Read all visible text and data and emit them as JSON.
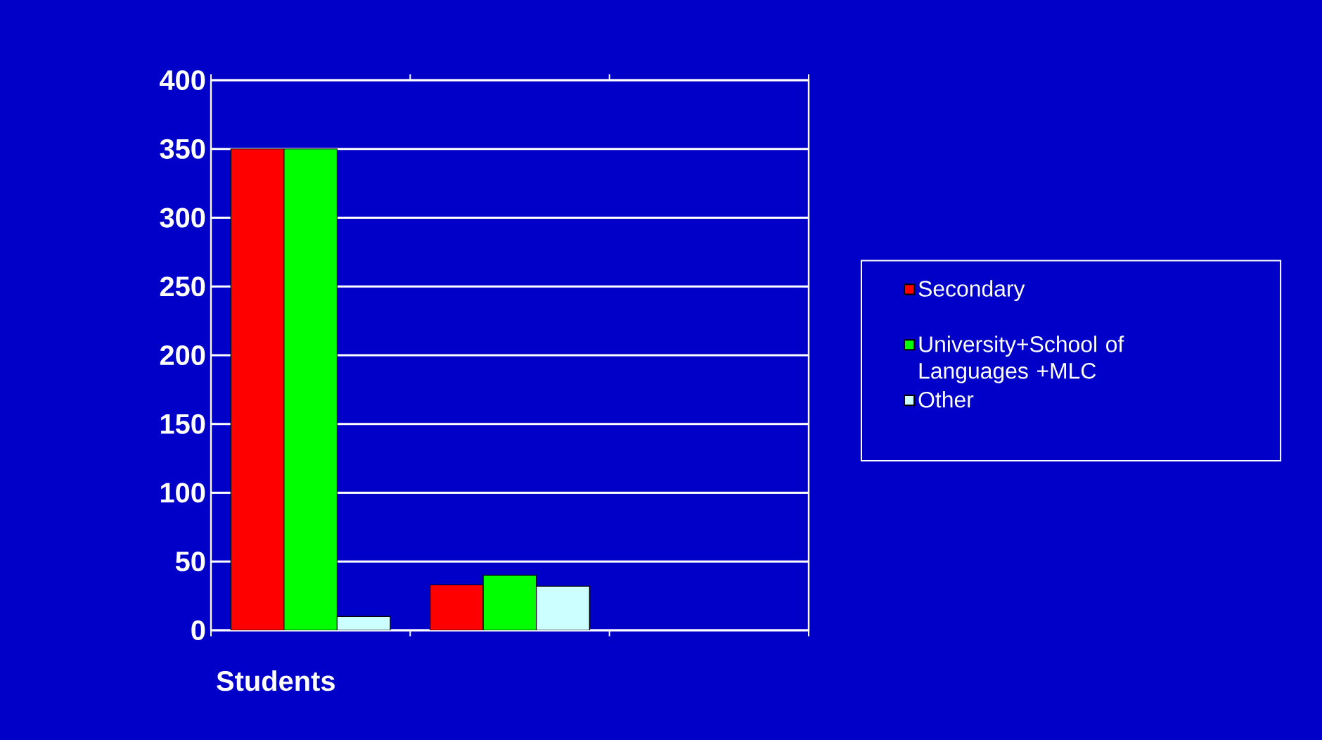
{
  "chart_data": {
    "type": "bar",
    "xlabel": "Students",
    "categories": [
      null,
      null,
      null
    ],
    "series": [
      {
        "name": "Secondary",
        "color": "#ff0000",
        "values": [
          350,
          33,
          null
        ]
      },
      {
        "name": "University+School of Languages +MLC",
        "color": "#00ff00",
        "values": [
          350,
          40,
          null
        ]
      },
      {
        "name": "Other",
        "color": "#ccffff",
        "values": [
          10,
          32,
          null
        ]
      }
    ],
    "ylim": [
      0,
      400
    ],
    "yticks": [
      0,
      50,
      100,
      150,
      200,
      250,
      300,
      350,
      400
    ],
    "grid": "y",
    "legend": "right"
  }
}
